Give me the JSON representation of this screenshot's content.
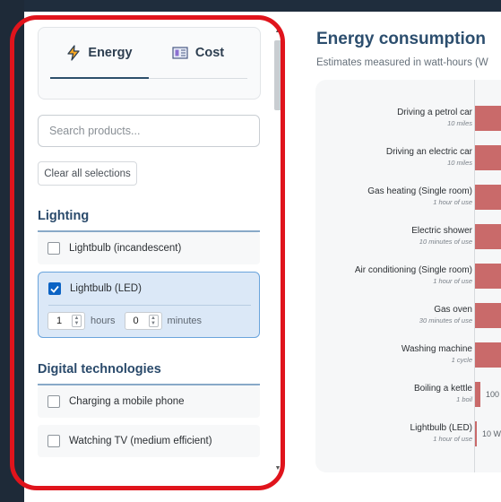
{
  "sidebar": {
    "tabs": [
      {
        "label": "Energy",
        "icon": "lightning-icon",
        "active": true
      },
      {
        "label": "Cost",
        "icon": "cost-icon",
        "active": false
      }
    ],
    "search_placeholder": "Search products...",
    "clear_label": "Clear all selections",
    "sections": [
      {
        "title": "Lighting",
        "items": [
          {
            "label": "Lightbulb (incandescent)",
            "checked": false
          },
          {
            "label": "Lightbulb (LED)",
            "checked": true,
            "hours": "1",
            "hours_label": "hours",
            "minutes": "0",
            "minutes_label": "minutes"
          }
        ]
      },
      {
        "title": "Digital technologies",
        "items": [
          {
            "label": "Charging a mobile phone",
            "checked": false
          },
          {
            "label": "Watching TV (medium efficient)",
            "checked": false
          }
        ]
      }
    ]
  },
  "main": {
    "title": "Energy consumption",
    "subtitle": "Estimates measured in watt-hours (W"
  },
  "chart_data": {
    "type": "bar",
    "orientation": "horizontal",
    "categories": [
      {
        "label": "Driving a petrol car",
        "sub": "10 miles"
      },
      {
        "label": "Driving  an electric car",
        "sub": "10 miles"
      },
      {
        "label": "Gas heating (Single room)",
        "sub": "1 hour of use"
      },
      {
        "label": "Electric shower",
        "sub": "10 minutes of use"
      },
      {
        "label": "Air conditioning (Single room)",
        "sub": "1 hour of use"
      },
      {
        "label": "Gas oven",
        "sub": "30 minutes of use"
      },
      {
        "label": "Washing machine",
        "sub": "1 cycle"
      },
      {
        "label": "Boiling a kettle",
        "sub": "1 boil"
      },
      {
        "label": "Lightbulb (LED)",
        "sub": "1 hour of use"
      }
    ],
    "value_labels": [
      "",
      "",
      "",
      "",
      "",
      "",
      "",
      "100",
      "10 W"
    ],
    "relative_values": [
      1.0,
      1.0,
      1.0,
      1.0,
      1.0,
      0.85,
      0.85,
      0.1,
      0.02
    ],
    "bar_color": "#c96a6a"
  }
}
